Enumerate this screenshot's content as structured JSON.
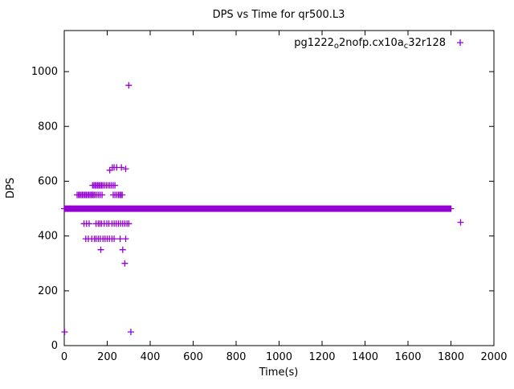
{
  "chart_data": {
    "type": "scatter",
    "title": "DPS vs Time for qr500.L3",
    "xlabel": "Time(s)",
    "ylabel": "DPS",
    "xlim": [
      0,
      2000
    ],
    "ylim": [
      0,
      1150
    ],
    "xticks": [
      0,
      200,
      400,
      600,
      800,
      1000,
      1200,
      1400,
      1600,
      1800,
      2000
    ],
    "yticks": [
      0,
      200,
      400,
      600,
      800,
      1000
    ],
    "grid": false,
    "marker": "plus",
    "marker_color": "#9400d3",
    "axis_color": "#000000",
    "legend": {
      "position": "top-right-inside",
      "label": "pg1222_o2nofp.cx10a_c32r128",
      "label_parts": [
        {
          "text": "pg1222"
        },
        {
          "text": "o",
          "sub": true
        },
        {
          "text": "2nofp.cx10a"
        },
        {
          "text": "c",
          "sub": true
        },
        {
          "text": "32r128"
        }
      ]
    },
    "series": [
      {
        "name": "pg1222_o2nofp.cx10a_c32r128",
        "band": {
          "y": 500,
          "x_start": 0,
          "x_end": 1800,
          "x_step": 4
        },
        "points": [
          [
            60,
            550
          ],
          [
            66,
            550
          ],
          [
            72,
            550
          ],
          [
            78,
            550
          ],
          [
            84,
            550
          ],
          [
            90,
            550
          ],
          [
            96,
            550
          ],
          [
            102,
            550
          ],
          [
            108,
            550
          ],
          [
            114,
            550
          ],
          [
            120,
            550
          ],
          [
            126,
            550
          ],
          [
            132,
            550
          ],
          [
            138,
            550
          ],
          [
            144,
            550
          ],
          [
            152,
            550
          ],
          [
            160,
            550
          ],
          [
            168,
            550
          ],
          [
            176,
            550
          ],
          [
            228,
            550
          ],
          [
            236,
            550
          ],
          [
            244,
            550
          ],
          [
            252,
            550
          ],
          [
            258,
            550
          ],
          [
            264,
            550
          ],
          [
            270,
            550
          ],
          [
            132,
            585
          ],
          [
            138,
            585
          ],
          [
            144,
            585
          ],
          [
            150,
            585
          ],
          [
            156,
            585
          ],
          [
            162,
            585
          ],
          [
            168,
            585
          ],
          [
            174,
            585
          ],
          [
            180,
            585
          ],
          [
            188,
            585
          ],
          [
            196,
            585
          ],
          [
            204,
            585
          ],
          [
            212,
            585
          ],
          [
            220,
            585
          ],
          [
            228,
            585
          ],
          [
            236,
            585
          ],
          [
            212,
            640
          ],
          [
            224,
            650
          ],
          [
            232,
            650
          ],
          [
            244,
            650
          ],
          [
            266,
            650
          ],
          [
            286,
            645
          ],
          [
            92,
            445
          ],
          [
            104,
            445
          ],
          [
            116,
            445
          ],
          [
            148,
            445
          ],
          [
            158,
            445
          ],
          [
            166,
            445
          ],
          [
            174,
            445
          ],
          [
            186,
            445
          ],
          [
            198,
            445
          ],
          [
            208,
            445
          ],
          [
            222,
            445
          ],
          [
            232,
            445
          ],
          [
            242,
            445
          ],
          [
            252,
            445
          ],
          [
            262,
            445
          ],
          [
            272,
            445
          ],
          [
            282,
            445
          ],
          [
            292,
            445
          ],
          [
            300,
            445
          ],
          [
            100,
            390
          ],
          [
            112,
            390
          ],
          [
            128,
            390
          ],
          [
            140,
            390
          ],
          [
            148,
            390
          ],
          [
            158,
            390
          ],
          [
            168,
            390
          ],
          [
            180,
            390
          ],
          [
            190,
            390
          ],
          [
            200,
            390
          ],
          [
            210,
            390
          ],
          [
            222,
            390
          ],
          [
            232,
            390
          ],
          [
            260,
            390
          ],
          [
            286,
            390
          ],
          [
            170,
            350
          ],
          [
            272,
            350
          ],
          [
            282,
            300
          ],
          [
            300,
            950
          ],
          [
            2,
            50
          ],
          [
            310,
            50
          ],
          [
            1845,
            450
          ]
        ]
      }
    ]
  }
}
